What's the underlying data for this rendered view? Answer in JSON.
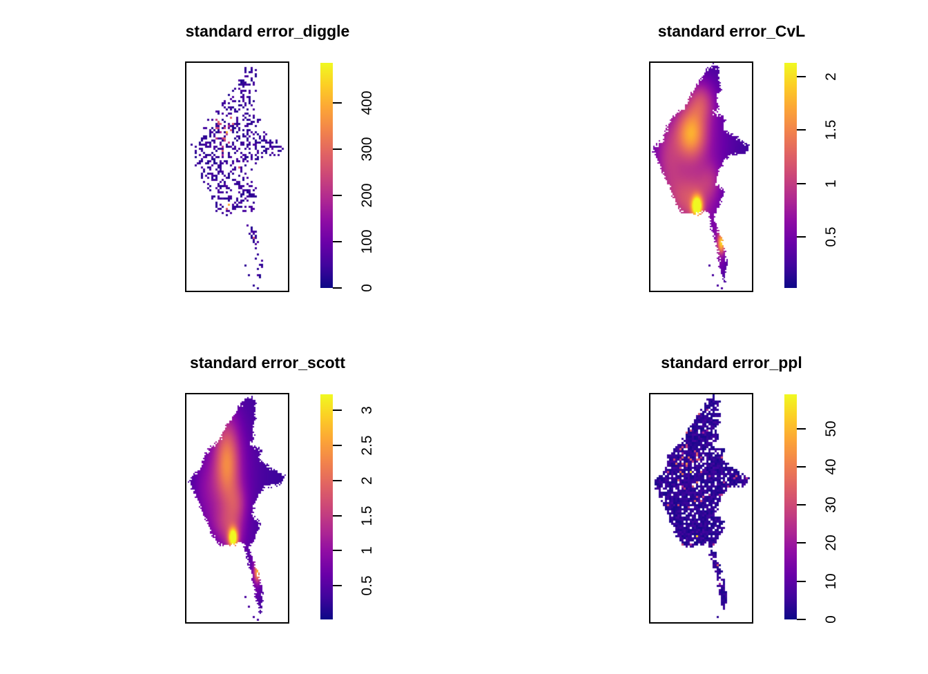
{
  "chart_data": {
    "type": "heatmap",
    "layout": "2x2 grid of spatial standard-error raster maps, each with a vertical plasma color ribbon legend on the right",
    "grid_on": false,
    "colormap": {
      "name": "plasma",
      "stops": [
        "#0d0887",
        "#41049d",
        "#6a00a8",
        "#8f0da4",
        "#b12a90",
        "#cc4778",
        "#e16462",
        "#f2844b",
        "#fca636",
        "#fcce25",
        "#f0f921"
      ]
    },
    "panels": [
      {
        "title": "standard error_diggle",
        "style": "sparse speckled raster: scattered dark-blue pixels tracing the region, small magenta/orange cluster in centre-west, magenta dots on southern tail",
        "legend_ticks": [
          0,
          100,
          200,
          300,
          400
        ],
        "legend_range": [
          0,
          487
        ]
      },
      {
        "title": "standard error_CvL",
        "style": "smooth filled raster: dark blue north/east, magenta body, bright orange central blob, yellow hotspot at southern delta, orange spot on tail",
        "legend_ticks": [
          0.5,
          1,
          1.5,
          2
        ],
        "legend_range": [
          0.02,
          2.13
        ]
      },
      {
        "title": "standard error_scott",
        "style": "smooth filled raster: mostly dark blue-purple, pink-orange central column, yellow hotspot at southern delta, orange spot on tail",
        "legend_ticks": [
          0.5,
          1,
          1.5,
          2,
          2.5,
          3
        ],
        "legend_range": [
          0.02,
          3.23
        ]
      },
      {
        "title": "standard error_ppl",
        "style": "dense speckled raster: region filled with dark navy pixels with white holes, scattered magenta dots concentrated centre-west, two yellow dots",
        "legend_ticks": [
          0,
          10,
          20,
          30,
          40,
          50
        ],
        "legend_range": [
          0,
          59
        ]
      }
    ]
  }
}
